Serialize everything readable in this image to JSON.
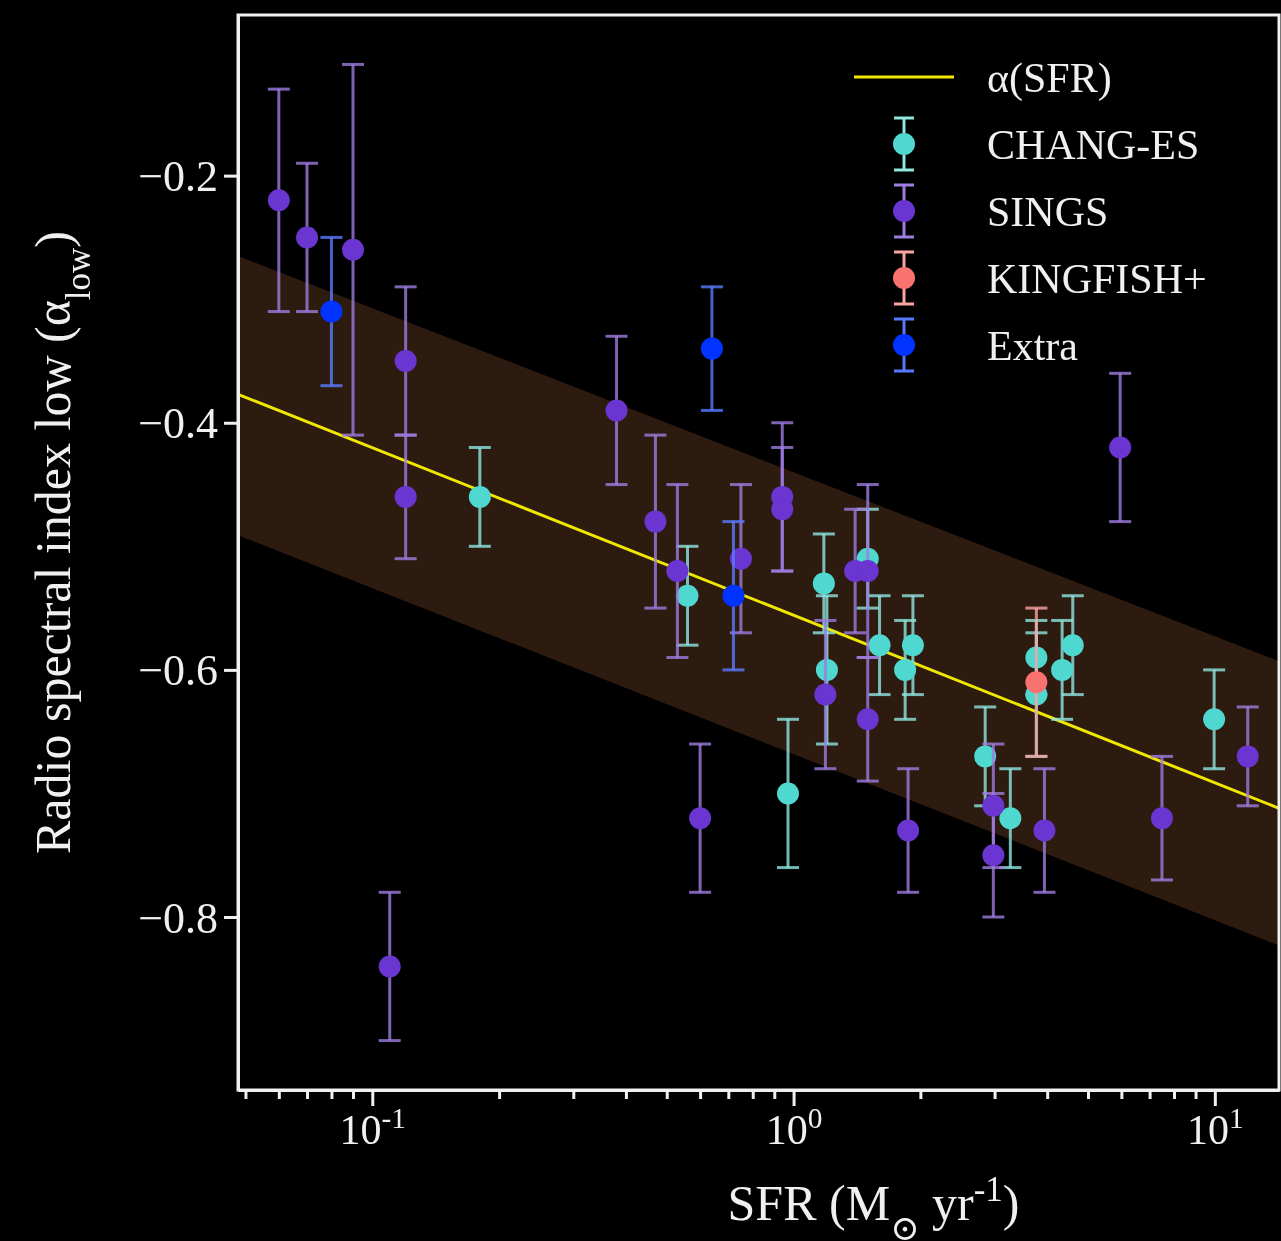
{
  "chart_data": {
    "type": "scatter",
    "xlabel": "SFR (M$_{⊙}$ yr$^{-1}$)",
    "ylabel": "Radio spectral index low (α$_{low}$)",
    "log": "x",
    "xlim": [
      0.048,
      14.2
    ],
    "ylim": [
      -0.94,
      -0.07
    ],
    "xticks": [
      {
        "value": 0.05,
        "label": null
      },
      {
        "value": 0.06,
        "label": null
      },
      {
        "value": 0.07,
        "label": null
      },
      {
        "value": 0.08,
        "label": null
      },
      {
        "value": 0.09,
        "label": null
      },
      {
        "value": 0.1,
        "label": "10$^{-1}$"
      },
      {
        "value": 0.2,
        "label": null
      },
      {
        "value": 0.3,
        "label": null
      },
      {
        "value": 0.4,
        "label": null
      },
      {
        "value": 0.5,
        "label": null
      },
      {
        "value": 0.6,
        "label": null
      },
      {
        "value": 0.7,
        "label": null
      },
      {
        "value": 0.8,
        "label": null
      },
      {
        "value": 0.9,
        "label": null
      },
      {
        "value": 1,
        "label": "10$^{0}$"
      },
      {
        "value": 2,
        "label": null
      },
      {
        "value": 3,
        "label": null
      },
      {
        "value": 4,
        "label": null
      },
      {
        "value": 5,
        "label": null
      },
      {
        "value": 6,
        "label": null
      },
      {
        "value": 7,
        "label": null
      },
      {
        "value": 8,
        "label": null
      },
      {
        "value": 9,
        "label": null
      },
      {
        "value": 10,
        "label": "10$^{1}$"
      }
    ],
    "yticks": [
      {
        "value": -0.2,
        "label": "−0.2"
      },
      {
        "value": -0.4,
        "label": "−0.4"
      },
      {
        "value": -0.6,
        "label": "−0.6"
      },
      {
        "value": -0.8,
        "label": "−0.8"
      }
    ],
    "legend": "top right",
    "marker": "circle",
    "grid": false,
    "series": [
      {
        "name": "α(SFR)",
        "type": "line",
        "marker": "none",
        "color": "#f0e800",
        "x": [
          0.048,
          14.2
        ],
        "values": [
          -0.377,
          -0.712
        ],
        "lower": [
          -0.491,
          -0.823
        ],
        "upper": [
          -0.265,
          -0.593
        ]
      },
      {
        "name": "CHANG-ES",
        "color": "#4fd8d0",
        "x": [
          0.18,
          0.56,
          0.97,
          1.18,
          1.2,
          1.5,
          1.6,
          1.84,
          1.92,
          2.85,
          3.27,
          3.77,
          3.77,
          4.34,
          4.6,
          9.96
        ],
        "values": [
          -0.46,
          -0.54,
          -0.7,
          -0.53,
          -0.6,
          -0.51,
          -0.58,
          -0.6,
          -0.58,
          -0.67,
          -0.72,
          -0.59,
          -0.62,
          -0.6,
          -0.58,
          -0.64
        ],
        "errors": [
          0.04,
          0.04,
          0.06,
          0.04,
          0.06,
          0.04,
          0.04,
          0.04,
          0.04,
          0.04,
          0.04,
          0.03,
          0.05,
          0.04,
          0.04,
          0.04
        ]
      },
      {
        "name": "SINGS",
        "color": "#6a35d0",
        "x": [
          0.06,
          0.07,
          0.09,
          0.12,
          0.12,
          0.11,
          0.38,
          0.47,
          0.53,
          0.6,
          0.75,
          0.94,
          0.94,
          1.19,
          1.4,
          1.5,
          1.5,
          1.87,
          2.98,
          2.98,
          3.94,
          5.96,
          7.49,
          11.97
        ],
        "values": [
          -0.22,
          -0.25,
          -0.26,
          -0.35,
          -0.46,
          -0.84,
          -0.39,
          -0.48,
          -0.52,
          -0.72,
          -0.51,
          -0.46,
          -0.47,
          -0.62,
          -0.52,
          -0.52,
          -0.64,
          -0.73,
          -0.71,
          -0.75,
          -0.73,
          -0.42,
          -0.72,
          -0.67
        ],
        "errors": [
          0.09,
          0.06,
          0.15,
          0.06,
          0.05,
          0.06,
          0.06,
          0.07,
          0.07,
          0.06,
          0.06,
          0.06,
          0.05,
          0.06,
          0.05,
          0.07,
          0.05,
          0.05,
          0.05,
          0.05,
          0.05,
          0.06,
          0.05,
          0.04
        ]
      },
      {
        "name": "KINGFISH+",
        "color": "#f87370",
        "x": [
          3.77
        ],
        "values": [
          -0.61
        ],
        "errors": [
          0.06
        ]
      },
      {
        "name": "Extra",
        "color": "#0033ff",
        "x": [
          0.08,
          0.64,
          0.72
        ],
        "values": [
          -0.31,
          -0.34,
          -0.54
        ],
        "errors": [
          0.06,
          0.05,
          0.06
        ]
      }
    ]
  }
}
